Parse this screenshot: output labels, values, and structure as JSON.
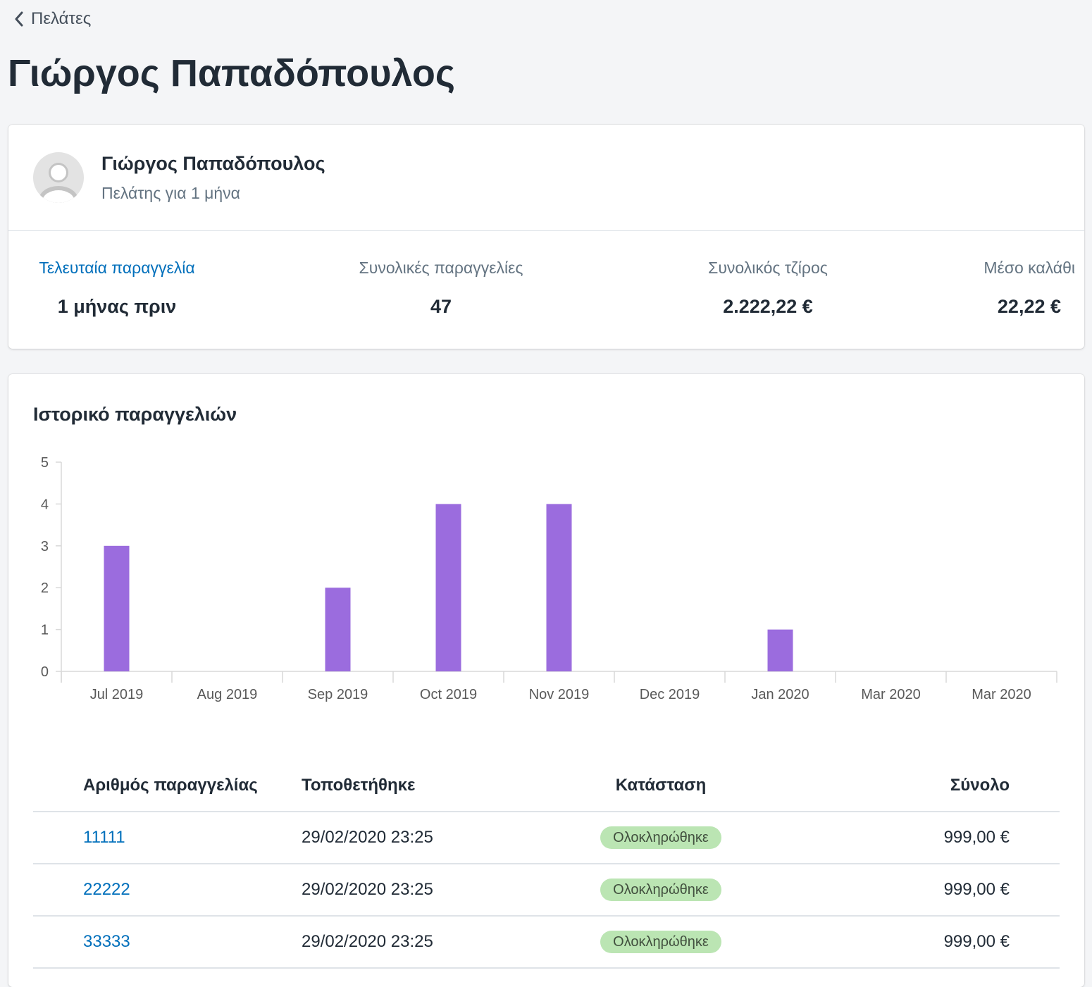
{
  "breadcrumb": {
    "back_label": "Πελάτες"
  },
  "page": {
    "title": "Γιώργος Παπαδόπουλος"
  },
  "customer": {
    "name": "Γιώργος Παπαδόπουλος",
    "subtitle": "Πελάτης για 1 μήνα"
  },
  "stats": [
    {
      "label": "Τελευταία παραγγελία",
      "value": "1 μήνας πριν"
    },
    {
      "label": "Συνολικές παραγγελίες",
      "value": "47"
    },
    {
      "label": "Συνολικός τζίρος",
      "value": "2.222,22 €"
    },
    {
      "label": "Μέσο καλάθι",
      "value": "22,22 €"
    }
  ],
  "history": {
    "title": "Ιστορικό παραγγελιών"
  },
  "chart_data": {
    "type": "bar",
    "categories": [
      "Jul 2019",
      "Aug 2019",
      "Sep 2019",
      "Oct 2019",
      "Nov 2019",
      "Dec 2019",
      "Jan 2020",
      "Mar 2020",
      "Mar 2020"
    ],
    "values": [
      3,
      0,
      2,
      4,
      4,
      0,
      1,
      0,
      0
    ],
    "ylim": [
      0,
      5
    ],
    "yticks": [
      0,
      1,
      2,
      3,
      4,
      5
    ],
    "bar_color": "#9b6cde",
    "grid": false,
    "title": "",
    "xlabel": "",
    "ylabel": ""
  },
  "orders": {
    "headers": {
      "number": "Αριθμός παραγγελίας",
      "placed": "Τοποθετήθηκε",
      "status": "Κατάσταση",
      "total": "Σύνολο"
    },
    "rows": [
      {
        "number": "11111",
        "placed": "29/02/2020 23:25",
        "status": "Ολοκληρώθηκε",
        "total": "999,00 €"
      },
      {
        "number": "22222",
        "placed": "29/02/2020 23:25",
        "status": "Ολοκληρώθηκε",
        "total": "999,00 €"
      },
      {
        "number": "33333",
        "placed": "29/02/2020 23:25",
        "status": "Ολοκληρώθηκε",
        "total": "999,00 €"
      }
    ]
  },
  "colors": {
    "link": "#006fbb",
    "badge_bg": "#bbe5b3",
    "bar": "#9b6cde"
  }
}
